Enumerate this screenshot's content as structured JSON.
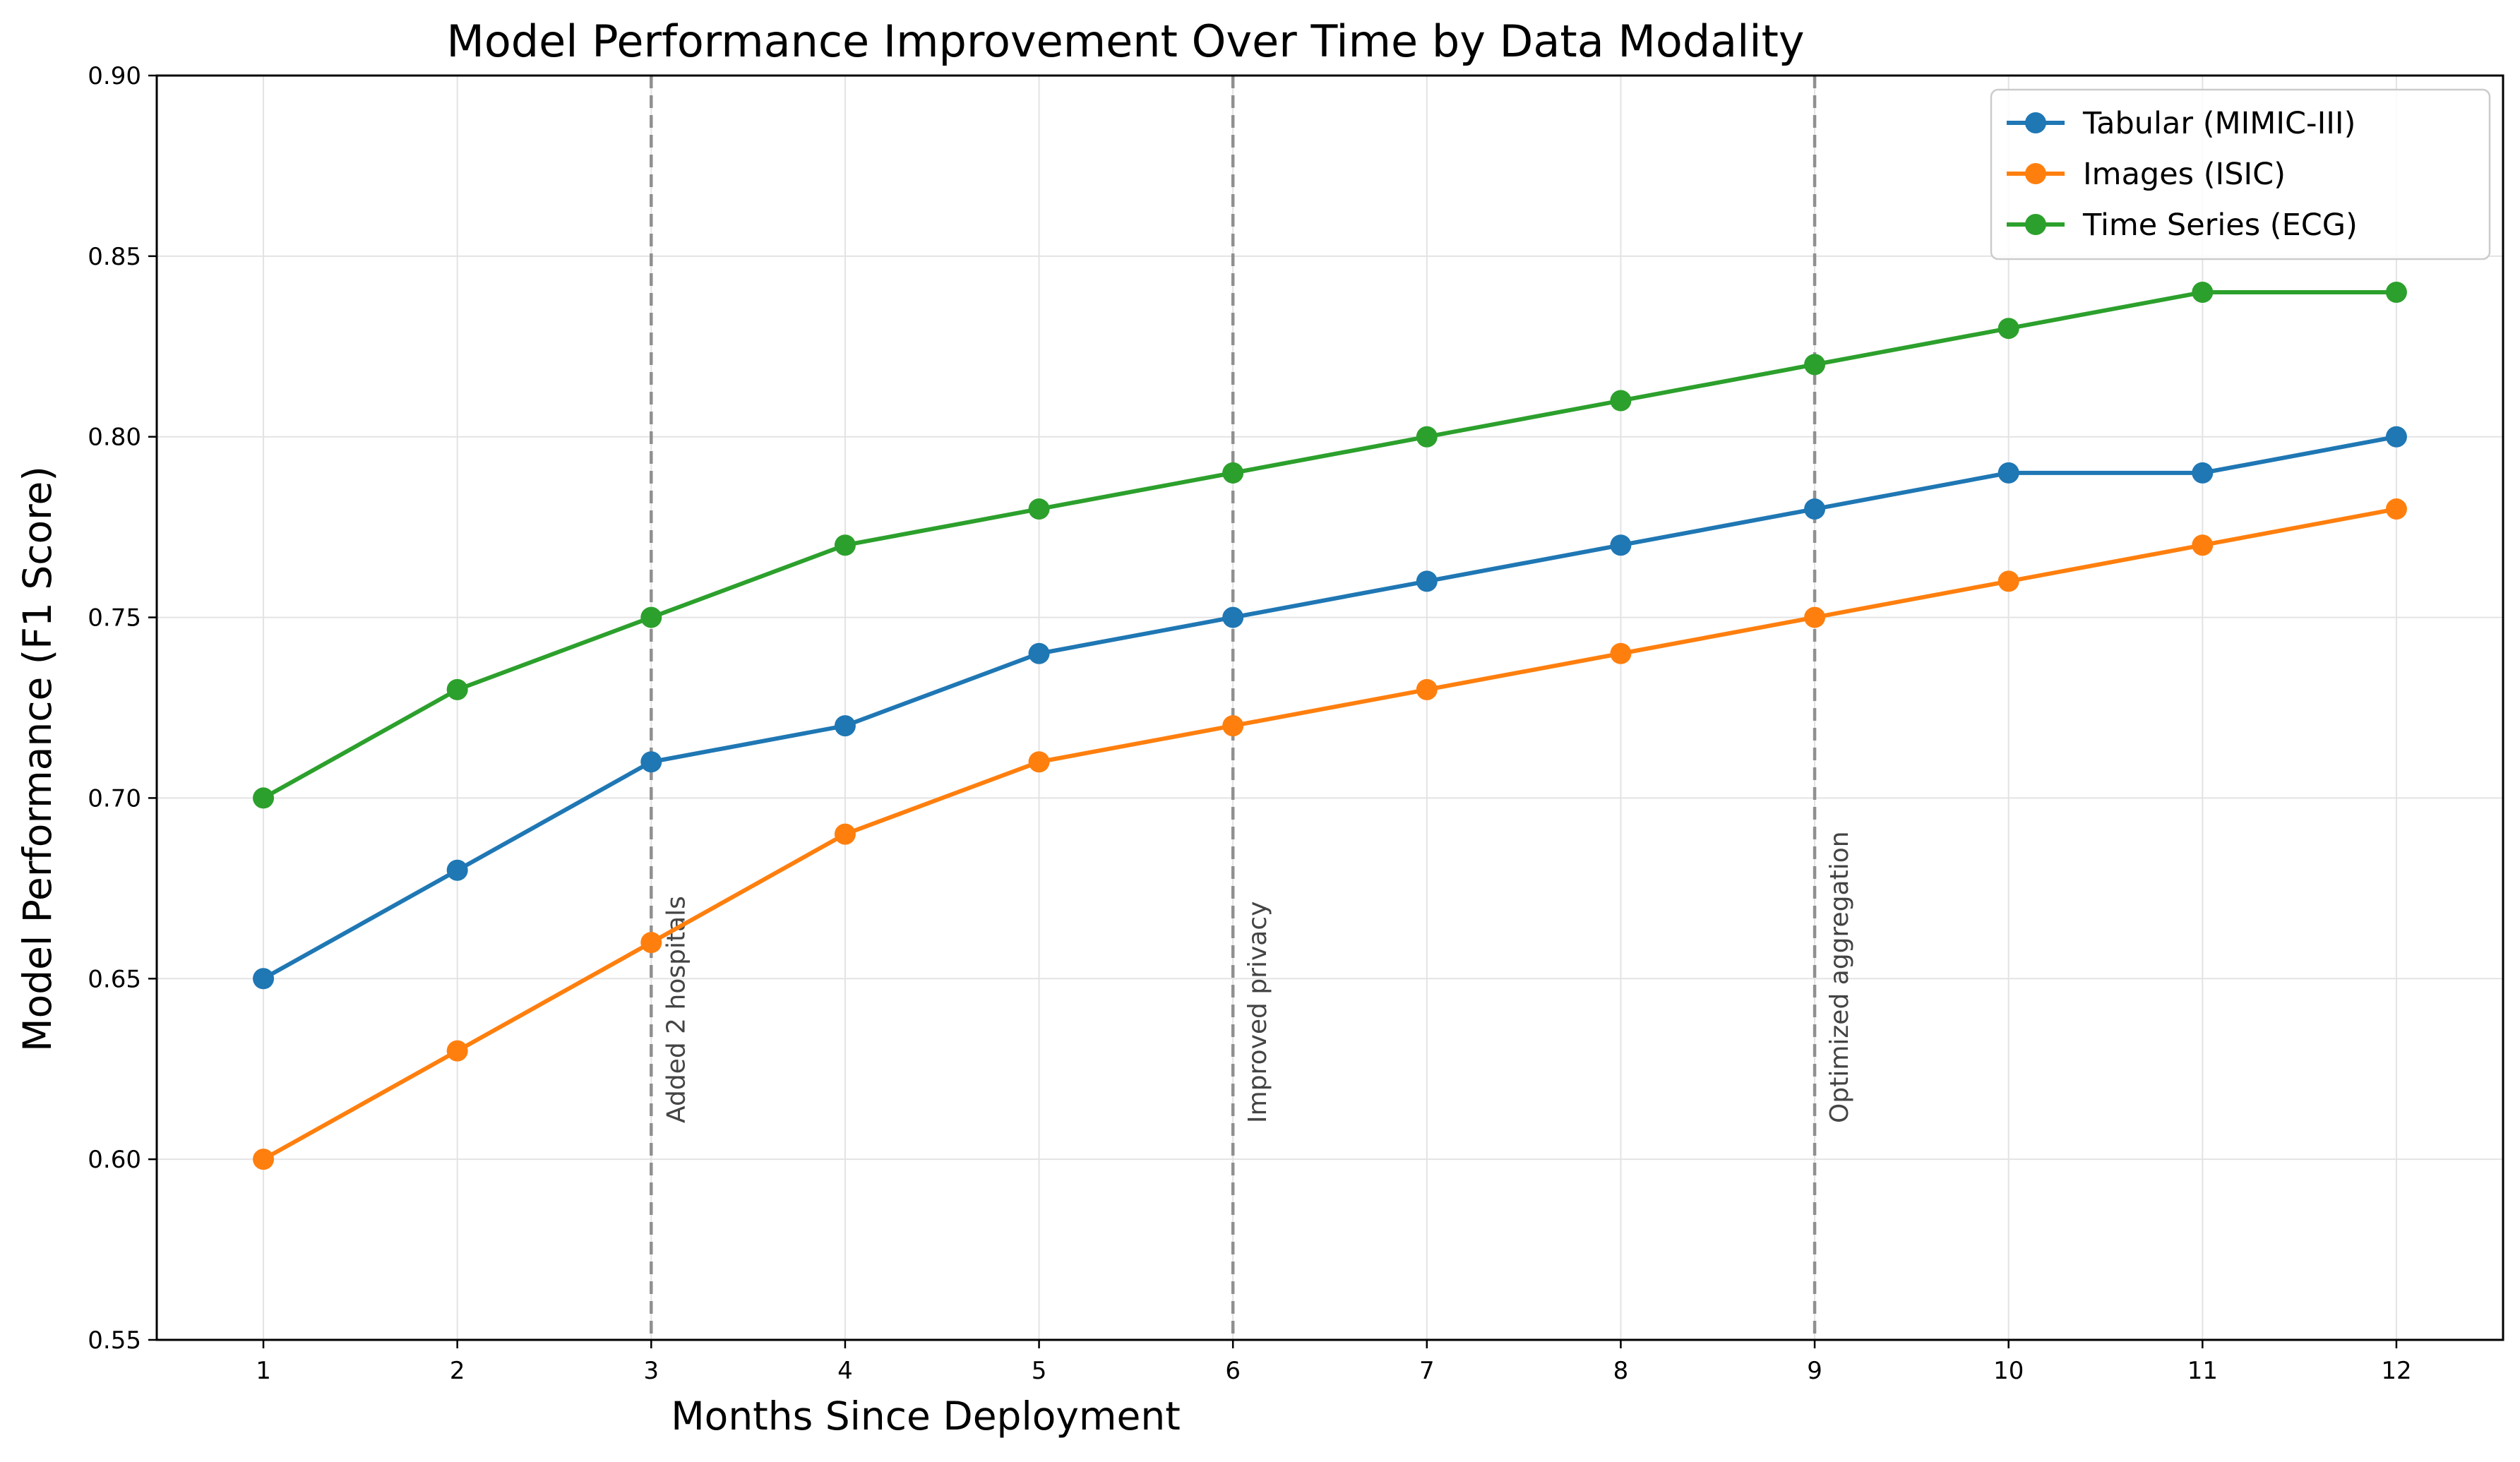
{
  "chart_data": {
    "type": "line",
    "title": "Model Performance Improvement Over Time by Data Modality",
    "xlabel": "Months Since Deployment",
    "ylabel": "Model Performance (F1 Score)",
    "x": [
      1,
      2,
      3,
      4,
      5,
      6,
      7,
      8,
      9,
      10,
      11,
      12
    ],
    "xlim": [
      0.45,
      12.55
    ],
    "ylim": [
      0.55,
      0.9
    ],
    "xticks": [
      "1",
      "2",
      "3",
      "4",
      "5",
      "6",
      "7",
      "8",
      "9",
      "10",
      "11",
      "12"
    ],
    "yticks": [
      "0.55",
      "0.60",
      "0.65",
      "0.70",
      "0.75",
      "0.80",
      "0.85",
      "0.90"
    ],
    "grid": true,
    "legend_position": "top-right",
    "series": [
      {
        "name": "Tabular (MIMIC-III)",
        "color": "#1f77b4",
        "values": [
          0.65,
          0.68,
          0.71,
          0.72,
          0.74,
          0.75,
          0.76,
          0.77,
          0.78,
          0.79,
          0.79,
          0.8
        ]
      },
      {
        "name": "Images (ISIC)",
        "color": "#ff7f0e",
        "values": [
          0.6,
          0.63,
          0.66,
          0.69,
          0.71,
          0.72,
          0.73,
          0.74,
          0.75,
          0.76,
          0.77,
          0.78
        ]
      },
      {
        "name": "Time Series (ECG)",
        "color": "#2ca02c",
        "values": [
          0.7,
          0.73,
          0.75,
          0.77,
          0.78,
          0.79,
          0.8,
          0.81,
          0.82,
          0.83,
          0.84,
          0.84
        ]
      }
    ],
    "annotations": [
      {
        "x": 3,
        "text": "Added 2 hospitals"
      },
      {
        "x": 6,
        "text": "Improved privacy"
      },
      {
        "x": 9,
        "text": "Optimized aggregation"
      }
    ]
  }
}
